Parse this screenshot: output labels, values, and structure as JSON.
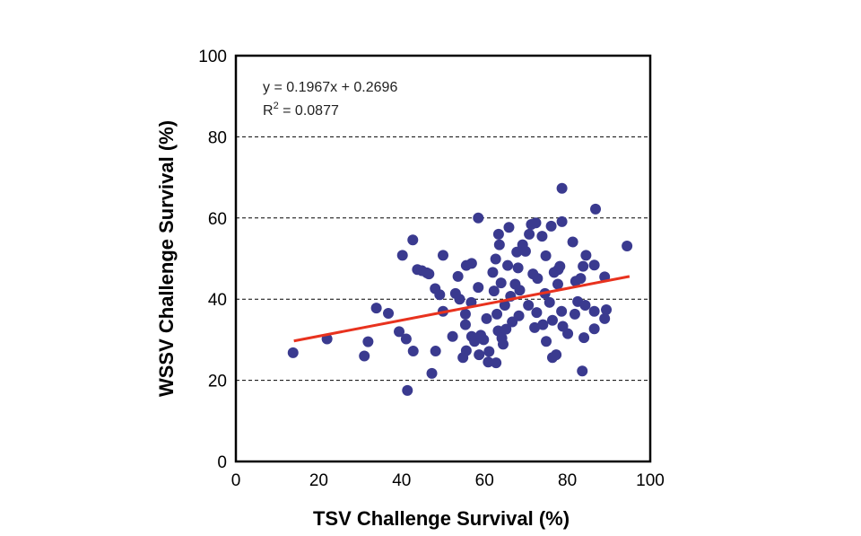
{
  "chart_data": {
    "type": "scatter",
    "xlabel": "TSV Challenge Survival (%)",
    "ylabel": "WSSV Challenge Survival (%)",
    "xlim": [
      0,
      100
    ],
    "ylim": [
      0,
      100
    ],
    "xticks": [
      "0",
      "20",
      "40",
      "60",
      "80",
      "100"
    ],
    "yticks": [
      "0",
      "20",
      "40",
      "60",
      "80",
      "100"
    ],
    "grid": "horizontal dashed",
    "point_color": "#3a3a8f",
    "trendline_color": "#e8321e",
    "annotation": {
      "equation": "y = 0.1967x + 0.2696",
      "r2_label": "R",
      "r2_sup": "2",
      "r2_value": " = 0.0877"
    },
    "trendline": {
      "x": [
        14,
        95
      ],
      "y": [
        29.7,
        45.6
      ]
    },
    "points": [
      [
        13.8,
        26.8
      ],
      [
        22,
        30.2
      ],
      [
        31,
        26
      ],
      [
        31.9,
        29.5
      ],
      [
        33.9,
        37.8
      ],
      [
        36.8,
        36.5
      ],
      [
        39.4,
        32
      ],
      [
        40.2,
        50.8
      ],
      [
        41.1,
        30.2
      ],
      [
        41.4,
        17.5
      ],
      [
        42.7,
        54.6
      ],
      [
        42.8,
        27.2
      ],
      [
        43.8,
        47.3
      ],
      [
        44.9,
        47
      ],
      [
        46.1,
        46.5
      ],
      [
        46.6,
        46.2
      ],
      [
        47.3,
        21.7
      ],
      [
        48.1,
        42.6
      ],
      [
        48.2,
        27.2
      ],
      [
        49.2,
        41.1
      ],
      [
        50,
        50.8
      ],
      [
        50,
        37
      ],
      [
        52.3,
        30.8
      ],
      [
        53,
        41.4
      ],
      [
        53.6,
        45.6
      ],
      [
        54,
        40
      ],
      [
        54.8,
        25.6
      ],
      [
        55.4,
        36.3
      ],
      [
        55.6,
        27.3
      ],
      [
        55.6,
        48.3
      ],
      [
        56.9,
        48.8
      ],
      [
        56.8,
        39.2
      ],
      [
        55.4,
        33.7
      ],
      [
        56.9,
        30.8
      ],
      [
        57.6,
        29.6
      ],
      [
        58.5,
        60
      ],
      [
        58.5,
        42.9
      ],
      [
        58.7,
        26.3
      ],
      [
        59.1,
        31.1
      ],
      [
        59.8,
        30
      ],
      [
        60.5,
        35.2
      ],
      [
        60.9,
        24.5
      ],
      [
        61.1,
        27.1
      ],
      [
        62,
        46.6
      ],
      [
        62.3,
        42
      ],
      [
        62.7,
        49.9
      ],
      [
        62.8,
        24.3
      ],
      [
        63,
        36.3
      ],
      [
        63.3,
        32.2
      ],
      [
        63.4,
        56
      ],
      [
        63.6,
        53.4
      ],
      [
        64,
        44
      ],
      [
        64.2,
        30.4
      ],
      [
        64.5,
        28.9
      ],
      [
        64.9,
        38.5
      ],
      [
        65.2,
        32.6
      ],
      [
        65.6,
        48.3
      ],
      [
        65.9,
        57.7
      ],
      [
        66.3,
        40.7
      ],
      [
        66.7,
        34.4
      ],
      [
        67.4,
        43.7
      ],
      [
        67.8,
        51.6
      ],
      [
        68.1,
        47.7
      ],
      [
        68.3,
        35.9
      ],
      [
        68.5,
        42.2
      ],
      [
        69.2,
        53.4
      ],
      [
        69.9,
        51.8
      ],
      [
        70.6,
        38.5
      ],
      [
        70.8,
        56
      ],
      [
        71.3,
        58.4
      ],
      [
        71.7,
        46.2
      ],
      [
        72.1,
        33
      ],
      [
        72.4,
        58.8
      ],
      [
        72.6,
        36.7
      ],
      [
        72.8,
        45.1
      ],
      [
        73.9,
        55.5
      ],
      [
        74.1,
        33.7
      ],
      [
        74.6,
        41.4
      ],
      [
        74.8,
        50.7
      ],
      [
        74.9,
        29.6
      ],
      [
        75.7,
        39.2
      ],
      [
        76.1,
        58
      ],
      [
        76.4,
        25.6
      ],
      [
        76.4,
        34.8
      ],
      [
        76.8,
        46.6
      ],
      [
        77.3,
        26.3
      ],
      [
        77.7,
        43.7
      ],
      [
        77.8,
        47.3
      ],
      [
        78.2,
        48.1
      ],
      [
        78.6,
        37
      ],
      [
        78.7,
        67.3
      ],
      [
        78.7,
        59.1
      ],
      [
        78.9,
        33.3
      ],
      [
        80.1,
        31.5
      ],
      [
        81.3,
        54.1
      ],
      [
        81.8,
        36.3
      ],
      [
        82,
        44.4
      ],
      [
        82.5,
        39.4
      ],
      [
        83.2,
        45.1
      ],
      [
        83.6,
        22.3
      ],
      [
        83.8,
        48.1
      ],
      [
        84,
        30.5
      ],
      [
        84.3,
        38.5
      ],
      [
        84.5,
        50.8
      ],
      [
        86.5,
        48.4
      ],
      [
        86.5,
        37
      ],
      [
        86.5,
        32.7
      ],
      [
        86.8,
        62.2
      ],
      [
        89,
        45.5
      ],
      [
        89.4,
        37.4
      ],
      [
        89,
        35.2
      ],
      [
        94.4,
        53.1
      ]
    ]
  }
}
